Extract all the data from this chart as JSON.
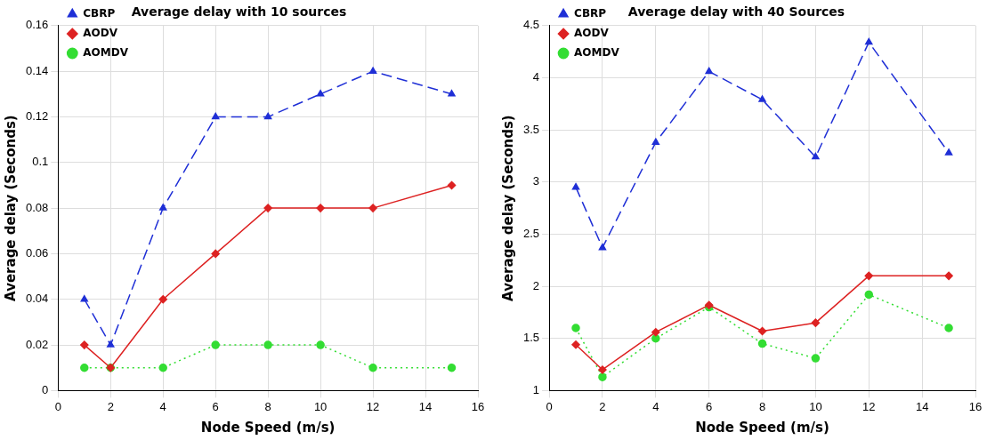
{
  "chart_data": [
    {
      "type": "line",
      "title": "Average delay with 10 sources",
      "xlabel": "Node Speed (m/s)",
      "ylabel": "Average delay (Seconds)",
      "x": [
        1,
        2,
        4,
        6,
        8,
        10,
        12,
        15
      ],
      "xlim": [
        0,
        16
      ],
      "xticks": [
        0,
        2,
        4,
        6,
        8,
        10,
        12,
        14,
        16
      ],
      "ylim": [
        0,
        0.16
      ],
      "yticks": [
        0,
        0.02,
        0.04,
        0.06,
        0.08,
        0.1,
        0.12,
        0.14,
        0.16
      ],
      "grid": true,
      "legend": "top left",
      "series": [
        {
          "name": "CBRP",
          "color": "#1f2fd6",
          "marker": "triangle",
          "line_style": "dashed",
          "values": [
            0.04,
            0.02,
            0.08,
            0.12,
            0.12,
            0.13,
            0.14,
            0.13
          ]
        },
        {
          "name": "AODV",
          "color": "#dd2222",
          "marker": "diamond",
          "line_style": "solid",
          "values": [
            0.02,
            0.01,
            0.04,
            0.06,
            0.08,
            0.08,
            0.08,
            0.09
          ]
        },
        {
          "name": "AOMDV",
          "color": "#33dd33",
          "marker": "circle",
          "line_style": "dotted",
          "values": [
            0.01,
            0.01,
            0.01,
            0.02,
            0.02,
            0.02,
            0.01,
            0.01
          ]
        }
      ]
    },
    {
      "type": "line",
      "title": "Average delay with 40 Sources",
      "xlabel": "Node Speed (m/s)",
      "ylabel": "Average delay (Seconds)",
      "x": [
        1,
        2,
        4,
        6,
        8,
        10,
        12,
        15
      ],
      "xlim": [
        0,
        16
      ],
      "xticks": [
        0,
        2,
        4,
        6,
        8,
        10,
        12,
        14,
        16
      ],
      "ylim": [
        1,
        4.5
      ],
      "yticks": [
        1,
        1.5,
        2,
        2.5,
        3,
        3.5,
        4,
        4.5
      ],
      "grid": true,
      "legend": "top left",
      "series": [
        {
          "name": "CBRP",
          "color": "#1f2fd6",
          "marker": "triangle",
          "line_style": "dashed",
          "values": [
            2.95,
            2.37,
            3.38,
            4.06,
            3.79,
            3.24,
            4.34,
            3.28
          ]
        },
        {
          "name": "AODV",
          "color": "#dd2222",
          "marker": "diamond",
          "line_style": "solid",
          "values": [
            1.44,
            1.2,
            1.56,
            1.82,
            1.57,
            1.65,
            2.1,
            2.1
          ]
        },
        {
          "name": "AOMDV",
          "color": "#33dd33",
          "marker": "circle",
          "line_style": "dotted",
          "values": [
            1.6,
            1.13,
            1.5,
            1.8,
            1.45,
            1.31,
            1.92,
            1.6
          ]
        }
      ]
    }
  ]
}
